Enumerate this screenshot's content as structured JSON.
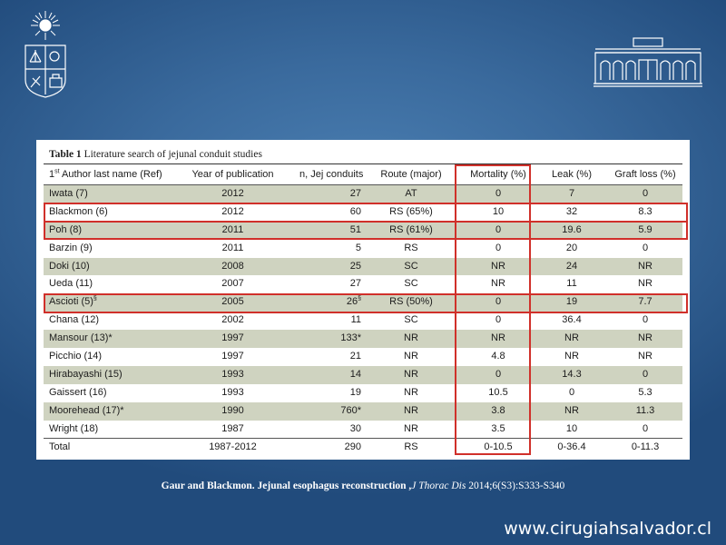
{
  "slide": {
    "logo_left_icon": "university-seal-icon",
    "logo_right_icon": "hospital-building-icon"
  },
  "table": {
    "caption_label": "Table 1",
    "caption_text": " Literature search of jejunal conduit studies",
    "headers": [
      "1st Author last name (Ref)",
      "Year of publication",
      "n, Jej conduits",
      "Route (major)",
      "Mortality (%)",
      "Leak (%)",
      "Graft loss (%)"
    ],
    "header_first_sup": "st",
    "header_first_pre": "1",
    "header_first_post": " Author last name (Ref)",
    "rows": [
      {
        "author": "Iwata (7)",
        "year": "2012",
        "n": "27",
        "route": "AT",
        "mortality": "0",
        "leak": "7",
        "graft": "0"
      },
      {
        "author": "Blackmon (6)",
        "year": "2012",
        "n": "60",
        "route": "RS (65%)",
        "mortality": "10",
        "leak": "32",
        "graft": "8.3"
      },
      {
        "author": "Poh (8)",
        "year": "2011",
        "n": "51",
        "route": "RS (61%)",
        "mortality": "0",
        "leak": "19.6",
        "graft": "5.9"
      },
      {
        "author": "Barzin (9)",
        "year": "2011",
        "n": "5",
        "route": "RS",
        "mortality": "0",
        "leak": "20",
        "graft": "0"
      },
      {
        "author": "Doki (10)",
        "year": "2008",
        "n": "25",
        "route": "SC",
        "mortality": "NR",
        "leak": "24",
        "graft": "NR"
      },
      {
        "author": "Ueda (11)",
        "year": "2007",
        "n": "27",
        "route": "SC",
        "mortality": "NR",
        "leak": "11",
        "graft": "NR"
      },
      {
        "author": "Ascioti (5)",
        "author_sup": "§",
        "year": "2005",
        "n": "26",
        "n_sup": "§",
        "route": "RS (50%)",
        "mortality": "0",
        "leak": "19",
        "graft": "7.7"
      },
      {
        "author": "Chana (12)",
        "year": "2002",
        "n": "11",
        "route": "SC",
        "mortality": "0",
        "leak": "36.4",
        "graft": "0"
      },
      {
        "author": "Mansour (13)*",
        "year": "1997",
        "n": "133*",
        "route": "NR",
        "mortality": "NR",
        "leak": "NR",
        "graft": "NR"
      },
      {
        "author": "Picchio (14)",
        "year": "1997",
        "n": "21",
        "route": "NR",
        "mortality": "4.8",
        "leak": "NR",
        "graft": "NR"
      },
      {
        "author": "Hirabayashi (15)",
        "year": "1993",
        "n": "14",
        "route": "NR",
        "mortality": "0",
        "leak": "14.3",
        "graft": "0"
      },
      {
        "author": "Gaissert (16)",
        "year": "1993",
        "n": "19",
        "route": "NR",
        "mortality": "10.5",
        "leak": "0",
        "graft": "5.3"
      },
      {
        "author": "Moorehead (17)*",
        "year": "1990",
        "n": "760*",
        "route": "NR",
        "mortality": "3.8",
        "leak": "NR",
        "graft": "11.3"
      },
      {
        "author": "Wright (18)",
        "year": "1987",
        "n": "30",
        "route": "NR",
        "mortality": "3.5",
        "leak": "10",
        "graft": "0"
      }
    ],
    "total": {
      "author": "Total",
      "year": "1987-2012",
      "n": "290",
      "route": "RS",
      "mortality": "0-10.5",
      "leak": "0-36.4",
      "graft": "0-11.3"
    },
    "highlight_color": "#d0302a",
    "shade_color": "#cfd3c0"
  },
  "citation": {
    "authors": "Gaur and Blackmon. Jejunal esophagus reconstruction ,",
    "journal": "J Thorac Dis",
    "ref": " 2014;6(S3):S333-S340"
  },
  "website": "www.cirugiahsalvador.cl"
}
